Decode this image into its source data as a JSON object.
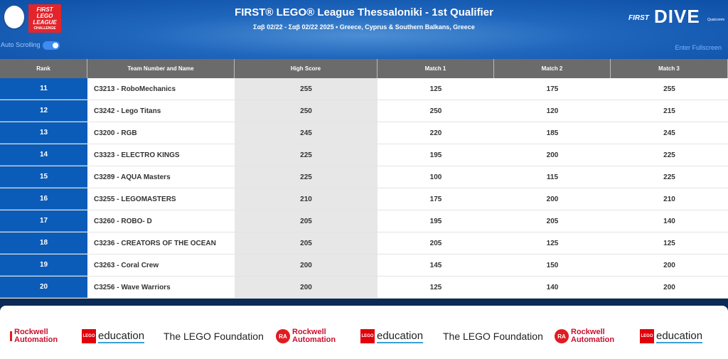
{
  "header": {
    "title": "FIRST® LEGO® League Thessaloniki - 1st Qualifier",
    "subtitle": "Σαβ 02/22 - Σαβ 02/22 2025 • Greece, Cyprus & Southern Balkans, Greece",
    "auto_scrolling": "Auto Scrolling",
    "fullscreen": "Enter Fullscreen",
    "left_logo": {
      "top": "FIRST",
      "mid": "LEGO",
      "mid2": "LEAGUE",
      "bottom": "CHALLENGE"
    },
    "right_logo": {
      "first": "FIRST",
      "dive": "DIVE",
      "sponsor": "Qualcomm"
    }
  },
  "table": {
    "columns": [
      "Rank",
      "Team Number and Name",
      "High Score",
      "Match 1",
      "Match 2",
      "Match 3"
    ],
    "rows": [
      [
        11,
        "C3213 - RoboMechanics",
        255,
        125,
        175,
        255
      ],
      [
        12,
        "C3242 - Lego Titans",
        250,
        250,
        120,
        215
      ],
      [
        13,
        "C3200 - RGB",
        245,
        220,
        185,
        245
      ],
      [
        14,
        "C3323 - ELECTRO KINGS",
        225,
        195,
        200,
        225
      ],
      [
        15,
        "C3289 - AQUA Masters",
        225,
        100,
        115,
        225
      ],
      [
        16,
        "C3255 - LEGOMASTERS",
        210,
        175,
        200,
        210
      ],
      [
        17,
        "C3260 - ROBO- D",
        205,
        195,
        205,
        140
      ],
      [
        18,
        "C3236 - CREATORS OF THE OCEAN",
        205,
        205,
        125,
        125
      ],
      [
        19,
        "C3263 - Coral Crew",
        200,
        145,
        150,
        200
      ],
      [
        20,
        "C3256 - Wave Warriors",
        200,
        125,
        140,
        200
      ]
    ]
  },
  "sponsors": [
    {
      "kind": "rockwell",
      "lines": [
        "Rockwell",
        "Automation"
      ]
    },
    {
      "kind": "lego",
      "badge": "LEGO",
      "text": "education"
    },
    {
      "kind": "foundation",
      "text": "The LEGO Foundation"
    },
    {
      "kind": "rockwell",
      "badge": "RA",
      "lines": [
        "Rockwell",
        "Automation"
      ]
    },
    {
      "kind": "lego",
      "badge": "LEGO",
      "text": "education"
    },
    {
      "kind": "foundation",
      "text": "The LEGO Foundation"
    },
    {
      "kind": "rockwell",
      "badge": "RA",
      "lines": [
        "Rockwell",
        "Automation"
      ]
    },
    {
      "kind": "lego",
      "badge": "LEGO",
      "text": "education"
    }
  ]
}
